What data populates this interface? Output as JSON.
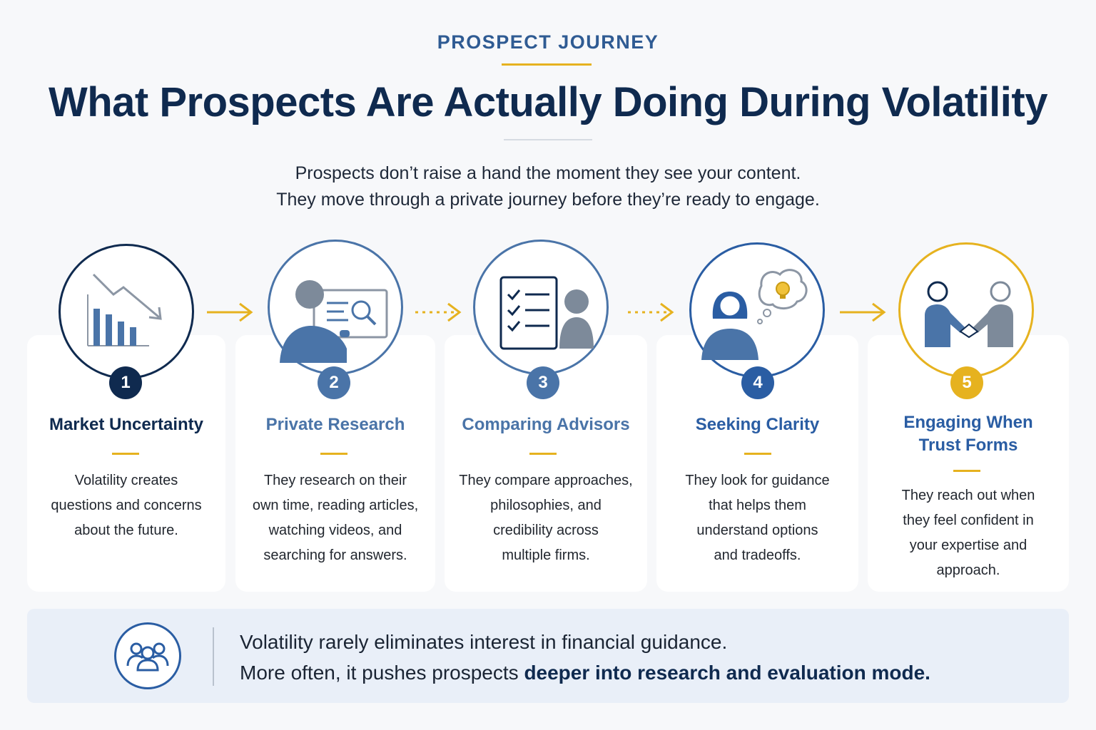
{
  "header": {
    "eyebrow": "PROSPECT JOURNEY",
    "title": "What Prospects Are Actually Doing During Volatility",
    "subtitle_line1": "Prospects don’t raise a hand the moment they see your content.",
    "subtitle_line2": "They move through a private journey before they’re ready to engage."
  },
  "steps": [
    {
      "number": "1",
      "title": "Market Uncertainty",
      "desc": [
        "Volatility creates",
        "questions and concerns",
        "about the future."
      ],
      "icon": "declining-chart-icon"
    },
    {
      "number": "2",
      "title": "Private Research",
      "desc": [
        "They research on their",
        "own time, reading articles,",
        "watching videos, and",
        "searching for answers."
      ],
      "icon": "person-laptop-search-icon"
    },
    {
      "number": "3",
      "title": "Comparing Advisors",
      "desc": [
        "They compare approaches,",
        "philosophies, and",
        "credibility across",
        "multiple firms."
      ],
      "icon": "checklist-person-icon"
    },
    {
      "number": "4",
      "title": "Seeking Clarity",
      "desc": [
        "They look for guidance",
        "that helps them",
        "understand options",
        "and tradeoffs."
      ],
      "icon": "person-lightbulb-thought-icon"
    },
    {
      "number": "5",
      "title_lines": [
        "Engaging When",
        "Trust Forms"
      ],
      "desc": [
        "They reach out when",
        "they feel confident in",
        "your expertise and",
        "approach."
      ],
      "icon": "handshake-icon"
    }
  ],
  "callout": {
    "line1": "Volatility rarely eliminates interest in financial guidance.",
    "line2_prefix": "More often, it pushes prospects ",
    "line2_bold": "deeper into research and evaluation mode.",
    "icon": "people-group-icon"
  },
  "colors": {
    "navy": "#0f2a4f",
    "blue": "#4a74a8",
    "accent_blue": "#2a5da3",
    "gold": "#e6b21f"
  }
}
